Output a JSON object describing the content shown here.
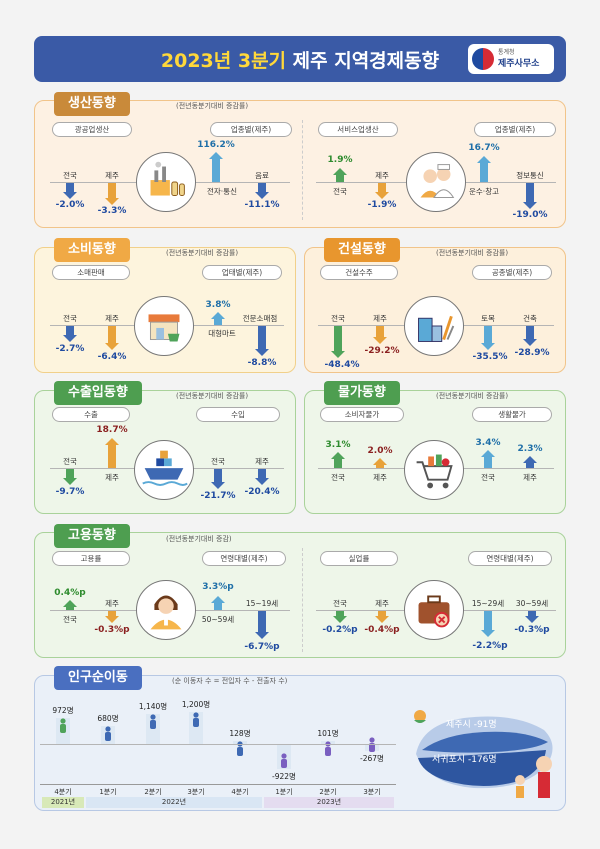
{
  "header": {
    "title_year": "2023년 3분기",
    "title_rest": " 제주 지역경제동향",
    "org_small": "통계청",
    "org_name": "제주사무소"
  },
  "colors": {
    "header_bg": "#3a5aa6",
    "production": "#e9a94a",
    "consumption": "#f0a945",
    "construction": "#e8962e",
    "trade": "#4e9e50",
    "price": "#4e9e50",
    "employment": "#4e9e50",
    "population": "#4a6fc0",
    "up_arrow_green": "#4fa35a",
    "up_arrow_blue": "#5aa9d6",
    "down_arrow_blue": "#3e69b3",
    "down_arrow_orange": "#e8a23a"
  },
  "production": {
    "badge": "생산동향",
    "note": "(전년동분기대비 증감률)",
    "mining_label": "광공업생산",
    "mining_industry_label": "업종별(제주)",
    "mining_items": [
      {
        "name": "전국",
        "value": "-2.0%"
      },
      {
        "name": "제주",
        "value": "-3.3%"
      },
      {
        "name": "전자·통신",
        "value": "116.2%"
      },
      {
        "name": "음료",
        "value": "-11.1%"
      }
    ],
    "service_label": "서비스업생산",
    "service_industry_label": "업종별(제주)",
    "service_items": [
      {
        "name": "전국",
        "value": "1.9%"
      },
      {
        "name": "제주",
        "value": "-1.9%"
      },
      {
        "name": "운수·창고",
        "value": "16.7%"
      },
      {
        "name": "정보통신",
        "value": "-19.0%"
      }
    ],
    "mining_icon": "factory-icon",
    "service_icon": "service-workers-icon"
  },
  "consumption": {
    "badge": "소비동향",
    "note": "(전년동분기대비 증감률)",
    "retail_label": "소매판매",
    "type_label": "업태별(제주)",
    "items": [
      {
        "name": "전국",
        "value": "-2.7%"
      },
      {
        "name": "제주",
        "value": "-6.4%"
      },
      {
        "name": "대형마트",
        "value": "3.8%"
      },
      {
        "name": "전문소매점",
        "value": "-8.8%"
      }
    ],
    "icon": "store-icon"
  },
  "construction": {
    "badge": "건설동향",
    "note": "(전년동분기대비 증감률)",
    "orders_label": "건설수주",
    "type_label": "공종별(제주)",
    "items": [
      {
        "name": "전국",
        "value": "-48.4%"
      },
      {
        "name": "제주",
        "value": "-29.2%"
      },
      {
        "name": "토목",
        "value": "-35.5%"
      },
      {
        "name": "건축",
        "value": "-28.9%"
      }
    ],
    "icon": "construction-icon"
  },
  "trade": {
    "badge": "수출입동향",
    "note": "(전년동분기대비 증감률)",
    "export_label": "수출",
    "import_label": "수입",
    "items": [
      {
        "name": "전국",
        "value": "-9.7%"
      },
      {
        "name": "제주",
        "value": "18.7%"
      },
      {
        "name": "전국",
        "value": "-21.7%"
      },
      {
        "name": "제주",
        "value": "-20.4%"
      }
    ],
    "icon": "cargo-ship-icon"
  },
  "price": {
    "badge": "물가동향",
    "note": "(전년동분기대비 증감률)",
    "cpi_label": "소비자물가",
    "living_label": "생활물가",
    "items": [
      {
        "name": "전국",
        "value": "3.1%"
      },
      {
        "name": "제주",
        "value": "2.0%"
      },
      {
        "name": "전국",
        "value": "3.4%"
      },
      {
        "name": "제주",
        "value": "2.3%"
      }
    ],
    "icon": "shopping-cart-icon"
  },
  "employment": {
    "badge": "고용동향",
    "note": "(전년동분기대비 증감)",
    "emp_label": "고용률",
    "emp_age_label": "연령대별(제주)",
    "emp_items": [
      {
        "name": "전국",
        "value": "0.4%p"
      },
      {
        "name": "제주",
        "value": "-0.3%p"
      },
      {
        "name": "50~59세",
        "value": "3.3%p"
      },
      {
        "name": "15~19세",
        "value": "-6.7%p"
      }
    ],
    "unemp_label": "실업률",
    "unemp_age_label": "연령대별(제주)",
    "unemp_items": [
      {
        "name": "전국",
        "value": "-0.2%p"
      },
      {
        "name": "제주",
        "value": "-0.4%p"
      },
      {
        "name": "15~29세",
        "value": "-2.2%p"
      },
      {
        "name": "30~59세",
        "value": "-0.3%p"
      }
    ],
    "emp_icon": "worker-icon",
    "unemp_icon": "briefcase-icon"
  },
  "population": {
    "badge": "인구순이동",
    "note": "(순 이동자 수 = 전입자 수 - 전출자 수)",
    "quarters": [
      "4분기",
      "1분기",
      "2분기",
      "3분기",
      "4분기",
      "1분기",
      "2분기",
      "3분기"
    ],
    "values": [
      "972명",
      "680명",
      "1,140명",
      "1,200명",
      "128명",
      "-922명",
      "101명",
      "-267명"
    ],
    "numbers": [
      972,
      680,
      1140,
      1200,
      128,
      -922,
      101,
      -267
    ],
    "years": [
      "2021년",
      "2022년",
      "2023년"
    ],
    "jeju_city": "제주시 -91명",
    "seogwipo_city": "서귀포시 -176명",
    "map_icon": "jeju-island-map-icon"
  }
}
